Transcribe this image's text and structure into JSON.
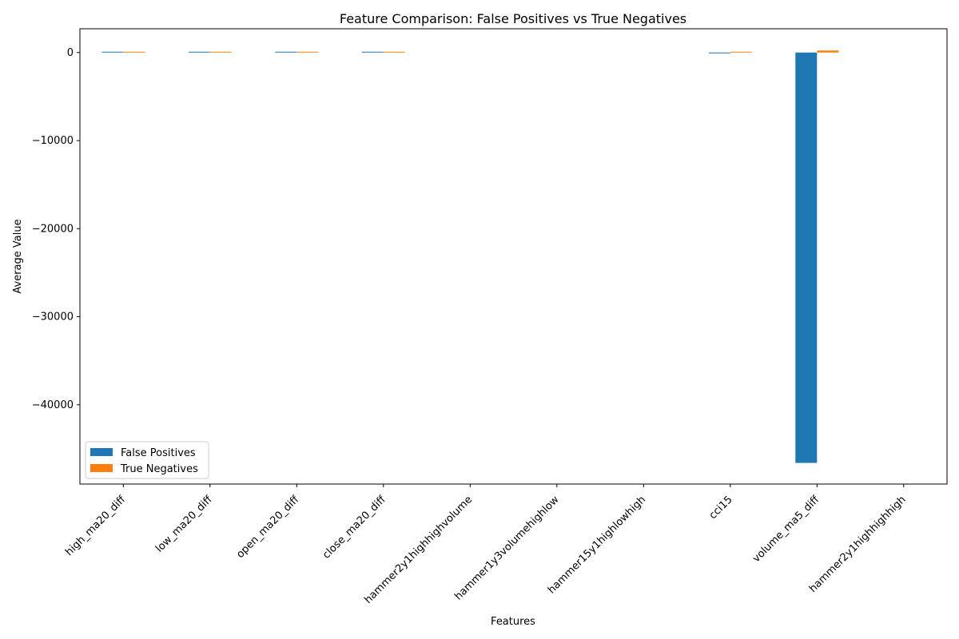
{
  "chart_data": {
    "type": "bar",
    "title": "Feature Comparison: False Positives vs True Negatives",
    "xlabel": "Features",
    "ylabel": "Average Value",
    "categories": [
      "high_ma20_diff",
      "low_ma20_diff",
      "open_ma20_diff",
      "close_ma20_diff",
      "hammer2y1highhighvolume",
      "hammer1y3volumehighlow",
      "hammer15y1highlowhigh",
      "cci15",
      "volume_ma5_diff",
      "hammer2y1highhighhigh"
    ],
    "series": [
      {
        "name": "False Positives",
        "color": "#1f77b4",
        "values": [
          0.1,
          0.1,
          0.1,
          0.1,
          0,
          0,
          0,
          -60,
          -46600,
          0
        ]
      },
      {
        "name": "True Negatives",
        "color": "#ff7f0e",
        "values": [
          0.1,
          0.1,
          0.1,
          0.1,
          0,
          0,
          0,
          5,
          230,
          0
        ]
      }
    ],
    "ylim": [
      -49000,
      2700
    ],
    "yticks": [
      0,
      -10000,
      -20000,
      -30000,
      -40000
    ],
    "ytick_labels": [
      "0",
      "−10000",
      "−20000",
      "−30000",
      "−40000"
    ],
    "grid": false,
    "legend_position": "lower-left"
  }
}
